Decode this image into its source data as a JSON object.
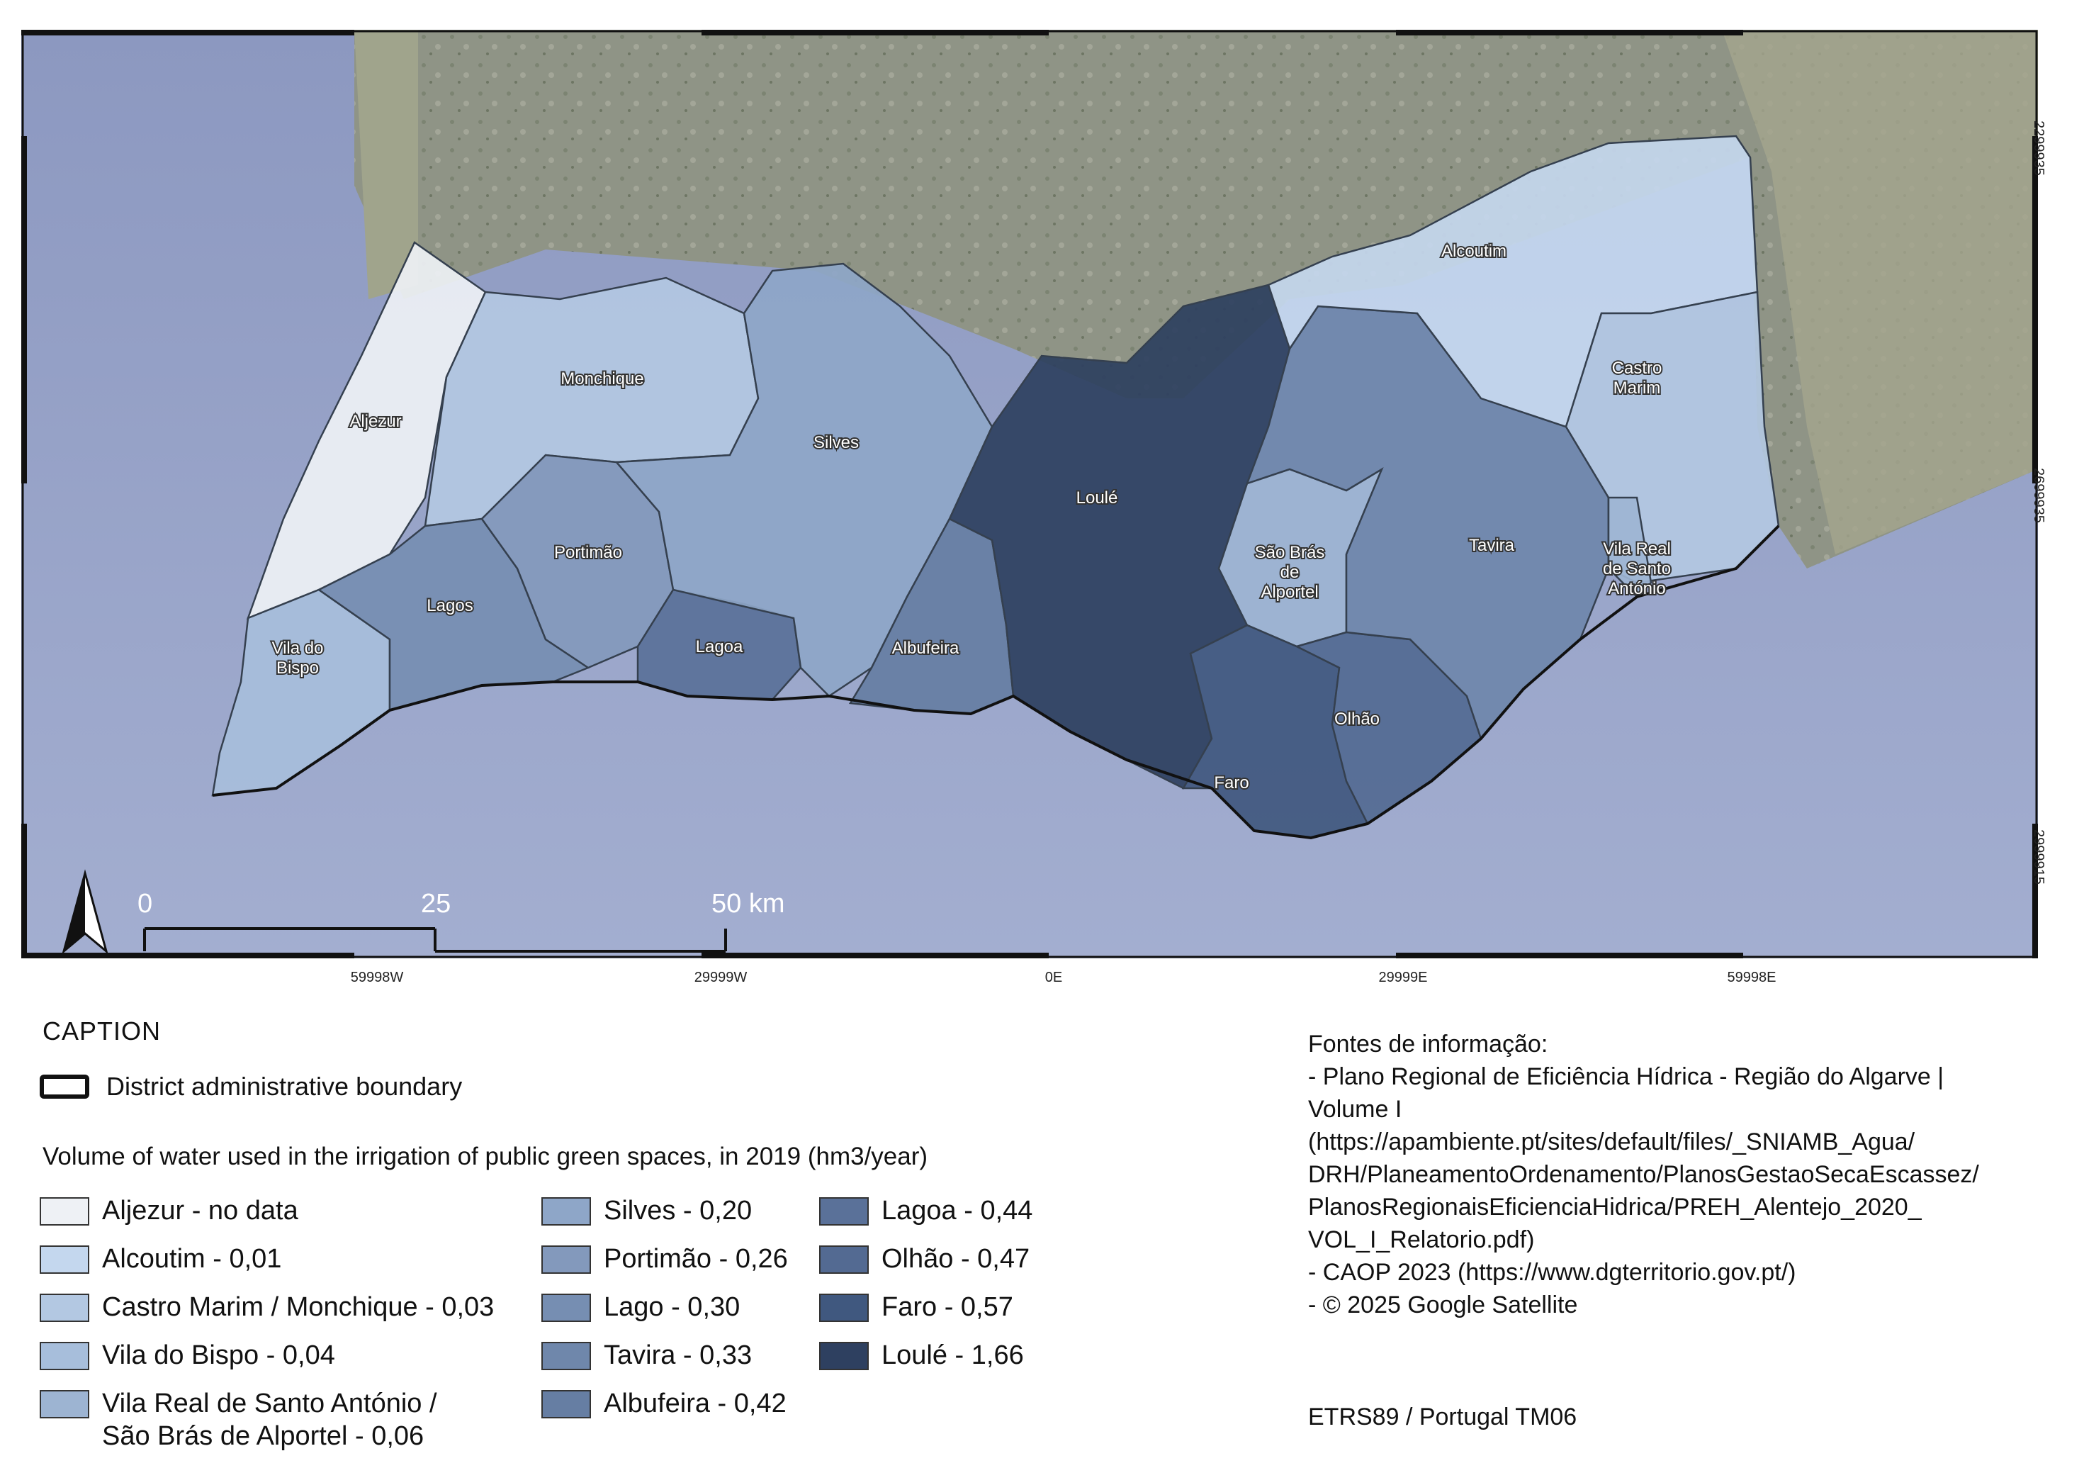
{
  "map": {
    "municipalities": [
      {
        "name": "Aljezur",
        "label_lines": [
          "Aljezur"
        ],
        "value": null,
        "color": "#eef1f5"
      },
      {
        "name": "Alcoutim",
        "label_lines": [
          "Alcoutim"
        ],
        "value": 0.01,
        "color": "#c4d7ee"
      },
      {
        "name": "Castro Marim",
        "label_lines": [
          "Castro",
          "Marim"
        ],
        "value": 0.03,
        "color": "#b3c8e2"
      },
      {
        "name": "Monchique",
        "label_lines": [
          "Monchique"
        ],
        "value": 0.03,
        "color": "#b3c8e2"
      },
      {
        "name": "Vila do Bispo",
        "label_lines": [
          "Vila do",
          "Bispo"
        ],
        "value": 0.04,
        "color": "#a7bedb"
      },
      {
        "name": "Vila Real de Santo António",
        "label_lines": [
          "Vila Real",
          "de Santo",
          "António"
        ],
        "value": 0.06,
        "color": "#9db4d2"
      },
      {
        "name": "São Brás de Alportel",
        "label_lines": [
          "São Brás",
          "de",
          "Alportel"
        ],
        "value": 0.06,
        "color": "#9db4d2"
      },
      {
        "name": "Silves",
        "label_lines": [
          "Silves"
        ],
        "value": 0.2,
        "color": "#8ea6c8"
      },
      {
        "name": "Portimão",
        "label_lines": [
          "Portimão"
        ],
        "value": 0.26,
        "color": "#8399bc"
      },
      {
        "name": "Lagos",
        "label_lines": [
          "Lagos"
        ],
        "value": 0.3,
        "color": "#768eb2"
      },
      {
        "name": "Tavira",
        "label_lines": [
          "Tavira"
        ],
        "value": 0.33,
        "color": "#6f87ab"
      },
      {
        "name": "Albufeira",
        "label_lines": [
          "Albufeira"
        ],
        "value": 0.42,
        "color": "#667ea3"
      },
      {
        "name": "Lagoa",
        "label_lines": [
          "Lagoa"
        ],
        "value": 0.44,
        "color": "#5a7199"
      },
      {
        "name": "Olhão",
        "label_lines": [
          "Olhão"
        ],
        "value": 0.47,
        "color": "#536a92"
      },
      {
        "name": "Faro",
        "label_lines": [
          "Faro"
        ],
        "value": 0.57,
        "color": "#40587f"
      },
      {
        "name": "Loulé",
        "label_lines": [
          "Loulé"
        ],
        "value": 1.66,
        "color": "#2e4060"
      }
    ],
    "scale_bar": {
      "labels": [
        "0",
        "25",
        "50 km"
      ]
    },
    "north_arrow": "north-arrow-icon",
    "longitude_ticks": [
      "59998W",
      "29999W",
      "0E",
      "29999E",
      "59998E"
    ],
    "latitude_ticks": [
      "2299935",
      "2699935",
      "2999915"
    ]
  },
  "caption": {
    "title": "CAPTION",
    "boundary_label": "District administrative boundary",
    "legend_heading": "Volume of water used in the irrigation of public green spaces, in 2019 (hm3/year)",
    "legend_columns": [
      [
        {
          "label": "Aljezur - no data",
          "color": "#eef1f5"
        },
        {
          "label": "Alcoutim - 0,01",
          "color": "#c4d7ee"
        },
        {
          "label": "Castro Marim / Monchique - 0,03",
          "color": "#b3c8e2"
        },
        {
          "label": "Vila do Bispo - 0,04",
          "color": "#a7bedb"
        },
        {
          "label": "Vila Real de Santo António /\nSão Brás de Alportel - 0,06",
          "color": "#9db4d2"
        }
      ],
      [
        {
          "label": "Silves - 0,20",
          "color": "#8ea6c8"
        },
        {
          "label": "Portimão - 0,26",
          "color": "#8399bc"
        },
        {
          "label": "Lago - 0,30",
          "color": "#768eb2"
        },
        {
          "label": "Tavira - 0,33",
          "color": "#6f87ab"
        },
        {
          "label": "Albufeira - 0,42",
          "color": "#667ea3"
        }
      ],
      [
        {
          "label": "Lagoa - 0,44",
          "color": "#5a7199"
        },
        {
          "label": "Olhão - 0,47",
          "color": "#536a92"
        },
        {
          "label": "Faro - 0,57",
          "color": "#40587f"
        },
        {
          "label": "Loulé - 1,66",
          "color": "#2e4060"
        }
      ]
    ]
  },
  "sources": {
    "lines": [
      "Fontes de informação:",
      "- Plano Regional de Eficiência Hídrica - Região do Algarve |",
      "Volume I",
      "(https://apambiente.pt/sites/default/files/_SNIAMB_Agua/",
      "DRH/PlaneamentoOrdenamento/PlanosGestaoSecaEscassez/",
      "PlanosRegionaisEficienciaHidrica/PREH_Alentejo_2020_",
      "VOL_I_Relatorio.pdf)",
      "- CAOP 2023 (https://www.dgterritorio.gov.pt/)",
      "- © 2025 Google Satellite"
    ],
    "crs": "ETRS89 / Portugal TM06"
  }
}
